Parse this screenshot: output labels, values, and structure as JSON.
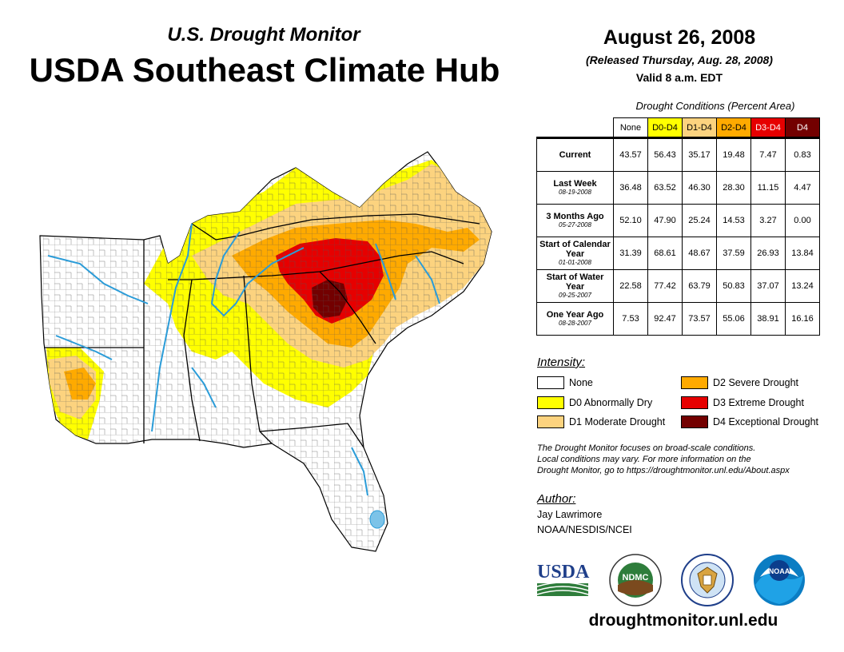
{
  "header": {
    "subtitle": "U.S. Drought Monitor",
    "title": "USDA Southeast Climate Hub",
    "date": "August 26, 2008",
    "released": "(Released Thursday, Aug. 28, 2008)",
    "valid": "Valid 8 a.m. EDT"
  },
  "table": {
    "title": "Drought Conditions (Percent Area)",
    "columns": [
      "None",
      "D0-D4",
      "D1-D4",
      "D2-D4",
      "D3-D4",
      "D4"
    ],
    "column_colors": [
      "#ffffff",
      "#ffff00",
      "#fcd37f",
      "#ffaa00",
      "#e60000",
      "#730000"
    ],
    "rows": [
      {
        "label": "Current",
        "sublabel": "",
        "values": [
          "43.57",
          "56.43",
          "35.17",
          "19.48",
          "7.47",
          "0.83"
        ]
      },
      {
        "label": "Last Week",
        "sublabel": "08-19-2008",
        "values": [
          "36.48",
          "63.52",
          "46.30",
          "28.30",
          "11.15",
          "4.47"
        ]
      },
      {
        "label": "3 Months Ago",
        "sublabel": "05-27-2008",
        "values": [
          "52.10",
          "47.90",
          "25.24",
          "14.53",
          "3.27",
          "0.00"
        ]
      },
      {
        "label": "Start of Calendar Year",
        "sublabel": "01-01-2008",
        "values": [
          "31.39",
          "68.61",
          "48.67",
          "37.59",
          "26.93",
          "13.84"
        ]
      },
      {
        "label": "Start of Water Year",
        "sublabel": "09-25-2007",
        "values": [
          "22.58",
          "77.42",
          "63.79",
          "50.83",
          "37.07",
          "13.24"
        ]
      },
      {
        "label": "One Year Ago",
        "sublabel": "08-28-2007",
        "values": [
          "7.53",
          "92.47",
          "73.57",
          "55.06",
          "38.91",
          "16.16"
        ]
      }
    ]
  },
  "legend": {
    "title": "Intensity:",
    "items": [
      {
        "label": "None",
        "color": "#ffffff"
      },
      {
        "label": "D0 Abnormally Dry",
        "color": "#ffff00"
      },
      {
        "label": "D1 Moderate Drought",
        "color": "#fcd37f"
      },
      {
        "label": "D2 Severe Drought",
        "color": "#ffaa00"
      },
      {
        "label": "D3 Extreme Drought",
        "color": "#e60000"
      },
      {
        "label": "D4 Exceptional Drought",
        "color": "#730000"
      }
    ]
  },
  "note": {
    "line1": "The Drought Monitor focuses on broad-scale conditions.",
    "line2": "Local conditions may vary. For more information on the",
    "line3": "Drought Monitor, go to https://droughtmonitor.unl.edu/About.aspx"
  },
  "author": {
    "title": "Author:",
    "name": "Jay Lawrimore",
    "org": "NOAA/NESDIS/NCEI"
  },
  "logos": {
    "usda": "USDA",
    "ndmc": "NDMC",
    "noaa": "NOAA"
  },
  "footer": {
    "website": "droughtmonitor.unl.edu"
  }
}
